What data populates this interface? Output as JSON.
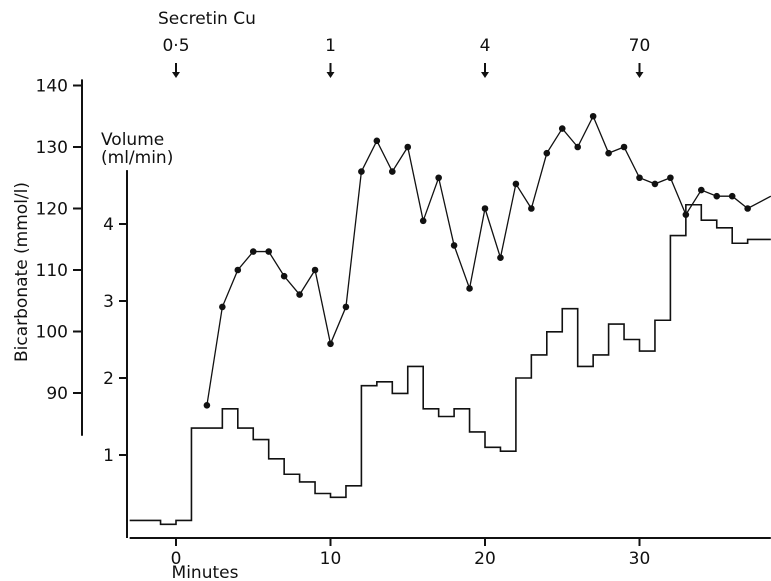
{
  "chart_data": {
    "type": "line",
    "x_axis": {
      "label": "Minutes",
      "range": [
        -3,
        38.5
      ],
      "ticks": [
        0,
        10,
        20,
        30
      ],
      "tick_labels": [
        "0",
        "10",
        "20",
        "30"
      ]
    },
    "y_axis_bicarbonate": {
      "label": "Bicarbonate (mmol/l)",
      "range": [
        85,
        141
      ],
      "ticks": [
        90,
        100,
        110,
        120,
        130,
        140
      ],
      "tick_labels": [
        "90",
        "100",
        "110",
        "120",
        "130",
        "140"
      ]
    },
    "y_axis_volume": {
      "label_line1": "Volume",
      "label_line2": "(ml/min)",
      "range": [
        0,
        4.7
      ],
      "ticks": [
        1,
        2,
        3,
        4
      ],
      "tick_labels": [
        "1",
        "2",
        "3",
        "4"
      ]
    },
    "secretin": {
      "label": "Secretin Cu",
      "doses": [
        {
          "x": 0,
          "label": "0·5"
        },
        {
          "x": 10,
          "label": "1"
        },
        {
          "x": 20,
          "label": "4"
        },
        {
          "x": 30,
          "label": "70"
        }
      ]
    },
    "series": [
      {
        "axis": "bicarbonate",
        "style": "line-with-markers",
        "x": [
          2,
          3,
          4,
          5,
          6,
          7,
          8,
          9,
          10,
          11,
          12,
          13,
          14,
          15,
          16,
          17,
          18,
          19,
          20,
          21,
          22,
          23,
          24,
          25,
          26,
          27,
          28,
          29,
          30,
          31,
          32,
          33,
          34,
          35,
          36,
          37
        ],
        "y": [
          88,
          104,
          110,
          113,
          113,
          109,
          106,
          110,
          98,
          104,
          126,
          131,
          126,
          130,
          118,
          125,
          114,
          107,
          120,
          112,
          124,
          120,
          129,
          133,
          130,
          135,
          129,
          130,
          125,
          124,
          125,
          119,
          123,
          122,
          122,
          120
        ],
        "tail_x": 38.5,
        "tail_y": 122
      },
      {
        "axis": "volume",
        "style": "step",
        "x": [
          -3,
          -1,
          0,
          1,
          2,
          3,
          4,
          5,
          6,
          7,
          8,
          9,
          10,
          11,
          12,
          13,
          14,
          15,
          16,
          17,
          18,
          19,
          20,
          21,
          22,
          23,
          24,
          25,
          26,
          27,
          28,
          29,
          30,
          31,
          32,
          33,
          34,
          35,
          36,
          37
        ],
        "y": [
          0.15,
          0.1,
          0.15,
          1.35,
          1.35,
          1.6,
          1.35,
          1.2,
          0.95,
          0.75,
          0.65,
          0.5,
          0.45,
          0.6,
          1.9,
          1.95,
          1.8,
          2.15,
          1.6,
          1.5,
          1.6,
          1.3,
          1.1,
          1.05,
          2.0,
          2.3,
          2.6,
          2.9,
          2.15,
          2.3,
          2.7,
          2.5,
          2.35,
          2.75,
          3.85,
          4.25,
          4.05,
          3.95,
          3.75,
          3.8
        ],
        "end_x": 38.5,
        "end_y": 3.8
      }
    ]
  }
}
